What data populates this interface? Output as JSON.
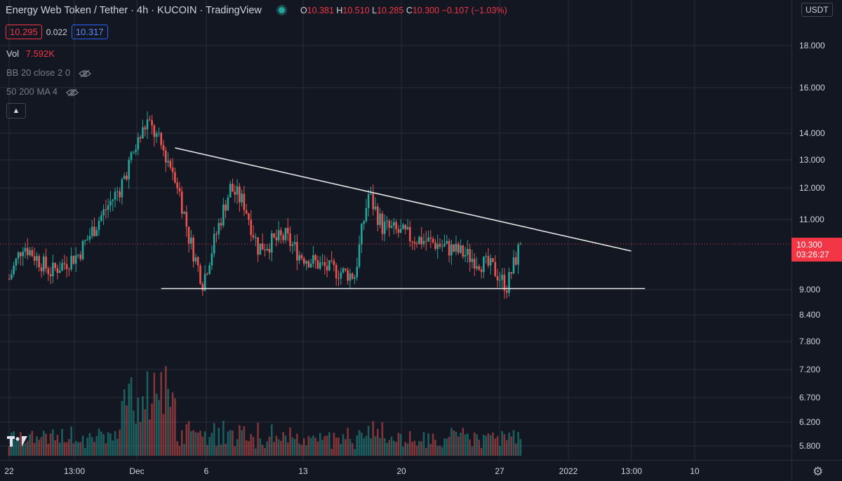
{
  "header": {
    "symbol": "Energy Web Token / Tether",
    "interval": "4h",
    "exchange": "KUCOIN",
    "source": "TradingView",
    "ohlc": {
      "open_label": "O",
      "open": "10.381",
      "high_label": "H",
      "high": "10.510",
      "low_label": "L",
      "low": "10.285",
      "close_label": "C",
      "close": "10.300",
      "change": "−0.107 (−1.03%)"
    }
  },
  "quote": {
    "sell": "10.295",
    "spread": "0.022",
    "buy": "10.317"
  },
  "indicators": {
    "volume": {
      "label": "Vol",
      "value": "7.592K"
    },
    "bollinger": {
      "label": "BB 20 close 2 0"
    },
    "moving_average": {
      "label": "50 200 MA 4"
    }
  },
  "price_axis": {
    "currency": "USDT",
    "top_clipped": "2",
    "ticks": [
      "18.000",
      "16.000",
      "14.000",
      "13.000",
      "12.000",
      "11.000",
      "9.000",
      "8.400",
      "7.800",
      "7.200",
      "6.700",
      "6.200",
      "5.800"
    ],
    "last_price": "10.300",
    "countdown": "03:26:27"
  },
  "time_axis": {
    "ticks": [
      "22",
      "13:00",
      "Dec",
      "6",
      "13",
      "20",
      "27",
      "2022",
      "13:00",
      "10"
    ]
  },
  "colors": {
    "background": "#131722",
    "up": "#26a69a",
    "down": "#ef5350",
    "grid": "#2a2e39",
    "trendline": "#e6e6e6",
    "last_price": "#f23645"
  },
  "icons": {
    "settings": "gear-icon",
    "visibility": "eye-off-icon",
    "collapse": "chevron-up-icon",
    "logo": "tradingview-logo"
  },
  "chart_data": {
    "type": "candlestick",
    "symbol": "EWT/USDT",
    "interval": "4h",
    "scale": "log",
    "grid": true,
    "last_close": 10.3,
    "price_path_approx": [
      {
        "x": "Nov 22",
        "y": 9.3
      },
      {
        "x": "Nov 23",
        "y": 10.3
      },
      {
        "x": "Nov 25",
        "y": 9.5
      },
      {
        "x": "Nov 27",
        "y": 10.0
      },
      {
        "x": "Nov 30",
        "y": 12.0
      },
      {
        "x": "Dec 2",
        "y": 14.5
      },
      {
        "x": "Dec 3",
        "y": 13.5
      },
      {
        "x": "Dec 4",
        "y": 12.5
      },
      {
        "x": "Dec 5",
        "y": 10.5
      },
      {
        "x": "Dec 6",
        "y": 9.2
      },
      {
        "x": "Dec 8",
        "y": 12.0
      },
      {
        "x": "Dec 9",
        "y": 11.5
      },
      {
        "x": "Dec 10",
        "y": 10.2
      },
      {
        "x": "Dec 12",
        "y": 10.5
      },
      {
        "x": "Dec 13",
        "y": 10.0
      },
      {
        "x": "Dec 15",
        "y": 9.6
      },
      {
        "x": "Dec 17",
        "y": 9.4
      },
      {
        "x": "Dec 18",
        "y": 11.8
      },
      {
        "x": "Dec 19",
        "y": 10.8
      },
      {
        "x": "Dec 21",
        "y": 10.5
      },
      {
        "x": "Dec 23",
        "y": 10.3
      },
      {
        "x": "Dec 25",
        "y": 10.0
      },
      {
        "x": "Dec 27",
        "y": 9.6
      },
      {
        "x": "Dec 28",
        "y": 9.1
      },
      {
        "x": "Dec 29",
        "y": 10.3
      }
    ],
    "drawings": [
      {
        "name": "descending-trendline",
        "from": {
          "x": "Dec 4",
          "y": 13.45
        },
        "to": {
          "x": "Jan 6",
          "y": 10.1
        }
      },
      {
        "name": "support-line",
        "from": {
          "x": "Dec 3",
          "y": 9.03
        },
        "to": {
          "x": "Jan 7",
          "y": 9.03
        }
      }
    ]
  }
}
